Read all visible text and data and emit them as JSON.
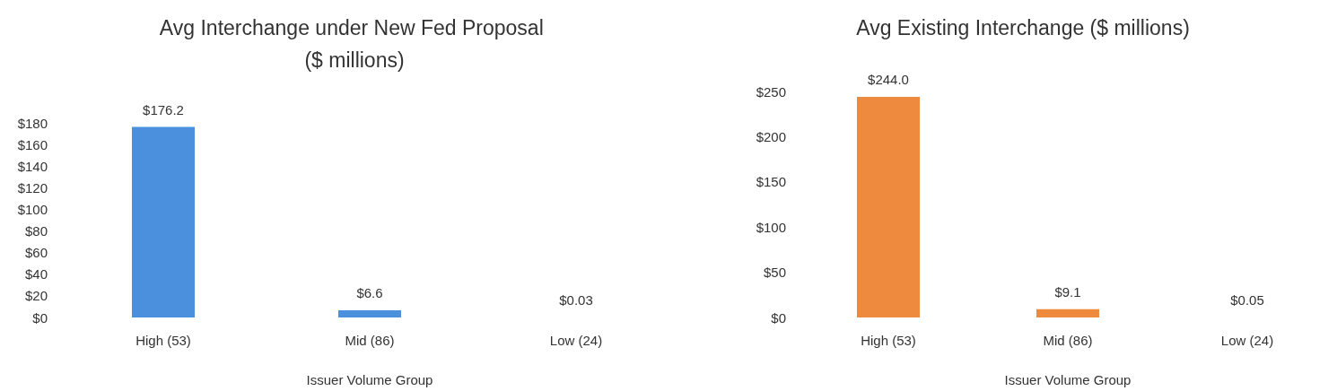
{
  "chart_data": [
    {
      "type": "bar",
      "title": "Avg Interchange under New Fed Proposal ($ millions)",
      "xlabel": "Issuer Volume Group",
      "categories": [
        "High (53)",
        "Mid (86)",
        "Low (24)"
      ],
      "values": [
        176.2,
        6.6,
        0.03
      ],
      "value_labels": [
        "$176.2",
        "$6.6",
        "$0.03"
      ],
      "color": "#4a90dc",
      "ylim": [
        0,
        180
      ],
      "yticks": [
        {
          "value": 0,
          "label": "$0"
        },
        {
          "value": 20,
          "label": "$20"
        },
        {
          "value": 40,
          "label": "$40"
        },
        {
          "value": 60,
          "label": "$60"
        },
        {
          "value": 80,
          "label": "$80"
        },
        {
          "value": 100,
          "label": "$100"
        },
        {
          "value": 120,
          "label": "$120"
        },
        {
          "value": 140,
          "label": "$140"
        },
        {
          "value": 160,
          "label": "$160"
        },
        {
          "value": 180,
          "label": "$180"
        }
      ]
    },
    {
      "type": "bar",
      "title": "Avg Existing Interchange ($ millions)",
      "xlabel": "Issuer Volume Group",
      "categories": [
        "High (53)",
        "Mid (86)",
        "Low (24)"
      ],
      "values": [
        244.0,
        9.1,
        0.05
      ],
      "value_labels": [
        "$244.0",
        "$9.1",
        "$0.05"
      ],
      "color": "#ee8a3e",
      "ylim": [
        0,
        250
      ],
      "yticks": [
        {
          "value": 0,
          "label": "$0"
        },
        {
          "value": 50,
          "label": "$50"
        },
        {
          "value": 100,
          "label": "$100"
        },
        {
          "value": 150,
          "label": "$150"
        },
        {
          "value": 200,
          "label": "$200"
        },
        {
          "value": 250,
          "label": "$250"
        }
      ]
    }
  ]
}
